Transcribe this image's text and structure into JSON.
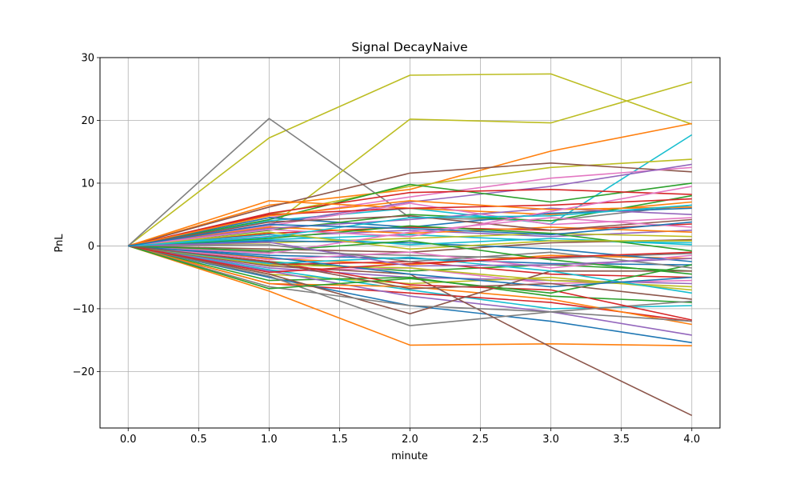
{
  "chart_data": {
    "type": "line",
    "title": "Signal DecayNaive",
    "xlabel": "minute",
    "ylabel": "PnL",
    "x": [
      0,
      1,
      2,
      3,
      4
    ],
    "xlim": [
      -0.2,
      4.2
    ],
    "ylim": [
      -29,
      30
    ],
    "xticks": [
      0.0,
      0.5,
      1.0,
      1.5,
      2.0,
      2.5,
      3.0,
      3.5,
      4.0
    ],
    "xtick_labels": [
      "0.0",
      "0.5",
      "1.0",
      "1.5",
      "2.0",
      "2.5",
      "3.0",
      "3.5",
      "4.0"
    ],
    "yticks": [
      -20,
      -10,
      0,
      10,
      20,
      30
    ],
    "ytick_labels": [
      "−20",
      "−10",
      "0",
      "10",
      "20",
      "30"
    ],
    "grid": true,
    "legend": "none",
    "palette": [
      "#1f77b4",
      "#ff7f0e",
      "#2ca02c",
      "#d62728",
      "#9467bd",
      "#8c564b",
      "#e377c2",
      "#7f7f7f",
      "#bcbd22",
      "#17becf"
    ],
    "series": [
      {
        "color": "#bcbd22",
        "values": [
          0,
          17.2,
          27.2,
          27.4,
          19.4
        ]
      },
      {
        "color": "#7f7f7f",
        "values": [
          0,
          20.3,
          4.5,
          4.0,
          6.5
        ]
      },
      {
        "color": "#bcbd22",
        "values": [
          0,
          3.0,
          20.2,
          19.6,
          26.1
        ]
      },
      {
        "color": "#ff7f0e",
        "values": [
          0,
          6.5,
          9.0,
          15.1,
          19.5
        ]
      },
      {
        "color": "#17becf",
        "values": [
          0,
          4.0,
          6.0,
          3.5,
          17.7
        ]
      },
      {
        "color": "#bcbd22",
        "values": [
          0,
          5.0,
          9.5,
          12.5,
          13.8
        ]
      },
      {
        "color": "#8c564b",
        "values": [
          0,
          6.2,
          11.6,
          13.2,
          11.8
        ]
      },
      {
        "color": "#e377c2",
        "values": [
          0,
          4.5,
          7.8,
          10.8,
          12.5
        ]
      },
      {
        "color": "#9467bd",
        "values": [
          0,
          3.5,
          7.0,
          9.5,
          13.0
        ]
      },
      {
        "color": "#2ca02c",
        "values": [
          0,
          4.2,
          9.8,
          7.0,
          10.0
        ]
      },
      {
        "color": "#d62728",
        "values": [
          0,
          5.2,
          8.5,
          9.0,
          8.2
        ]
      },
      {
        "color": "#ff7f0e",
        "values": [
          0,
          7.2,
          6.0,
          5.0,
          7.0
        ]
      },
      {
        "color": "#1f77b4",
        "values": [
          0,
          4.5,
          3.0,
          5.2,
          6.0
        ]
      },
      {
        "color": "#e377c2",
        "values": [
          0,
          3.2,
          6.8,
          3.4,
          4.5
        ]
      },
      {
        "color": "#2ca02c",
        "values": [
          0,
          2.5,
          5.0,
          4.0,
          8.0
        ]
      },
      {
        "color": "#d62728",
        "values": [
          0,
          2.0,
          3.0,
          2.5,
          3.5
        ]
      },
      {
        "color": "#9467bd",
        "values": [
          0,
          1.5,
          2.5,
          1.5,
          2.5
        ]
      },
      {
        "color": "#17becf",
        "values": [
          0,
          1.0,
          1.8,
          0.8,
          0.5
        ]
      },
      {
        "color": "#bcbd22",
        "values": [
          0,
          0.5,
          1.2,
          2.0,
          1.5
        ]
      },
      {
        "color": "#8c564b",
        "values": [
          0,
          -0.5,
          -1.0,
          0.5,
          1.0
        ]
      },
      {
        "color": "#7f7f7f",
        "values": [
          0,
          -1.0,
          -1.5,
          -2.0,
          -1.2
        ]
      },
      {
        "color": "#1f77b4",
        "values": [
          0,
          -1.5,
          -2.0,
          -2.8,
          -3.0
        ]
      },
      {
        "color": "#ff7f0e",
        "values": [
          0,
          -2.0,
          -3.0,
          -1.5,
          -2.0
        ]
      },
      {
        "color": "#2ca02c",
        "values": [
          0,
          -2.5,
          -4.0,
          -3.0,
          -4.0
        ]
      },
      {
        "color": "#d62728",
        "values": [
          0,
          -3.0,
          -2.5,
          -4.5,
          -5.0
        ]
      },
      {
        "color": "#9467bd",
        "values": [
          0,
          -3.5,
          -5.0,
          -5.5,
          -6.0
        ]
      },
      {
        "color": "#e377c2",
        "values": [
          0,
          -4.0,
          -3.5,
          -6.0,
          -5.5
        ]
      },
      {
        "color": "#bcbd22",
        "values": [
          0,
          -4.5,
          -6.0,
          -5.0,
          -7.0
        ]
      },
      {
        "color": "#17becf",
        "values": [
          0,
          -3.8,
          -7.0,
          -10.0,
          -9.5
        ]
      },
      {
        "color": "#2ca02c",
        "values": [
          0,
          -5.5,
          -5.0,
          -8.0,
          -9.0
        ]
      },
      {
        "color": "#d62728",
        "values": [
          0,
          -6.0,
          -7.5,
          -9.0,
          -12.0
        ]
      },
      {
        "color": "#1f77b4",
        "values": [
          0,
          -5.0,
          -9.5,
          -12.0,
          -15.4
        ]
      },
      {
        "color": "#9467bd",
        "values": [
          0,
          -4.0,
          -8.0,
          -10.5,
          -14.2
        ]
      },
      {
        "color": "#ff7f0e",
        "values": [
          0,
          -7.2,
          -15.8,
          -15.6,
          -15.9
        ]
      },
      {
        "color": "#ff7f0e",
        "values": [
          0,
          -6.0,
          -6.5,
          -8.5,
          -12.5
        ]
      },
      {
        "color": "#7f7f7f",
        "values": [
          0,
          -4.8,
          -12.7,
          -10.5,
          -8.8
        ]
      },
      {
        "color": "#8c564b",
        "values": [
          0,
          -4.5,
          -10.8,
          -4.0,
          -4.0
        ]
      },
      {
        "color": "#8c564b",
        "values": [
          0,
          -3.2,
          -4.5,
          -16.1,
          -27.0
        ]
      },
      {
        "color": "#7f7f7f",
        "values": [
          0,
          -6.5,
          -9.5,
          -10.5,
          -12.0
        ]
      },
      {
        "color": "#d62728",
        "values": [
          0,
          -2.5,
          -6.2,
          -7.0,
          -11.8
        ]
      },
      {
        "color": "#2ca02c",
        "values": [
          0,
          -6.8,
          -5.2,
          -7.5,
          -3.0
        ]
      },
      {
        "color": "#bcbd22",
        "values": [
          0,
          -3.0,
          -3.5,
          -5.5,
          -6.5
        ]
      },
      {
        "color": "#e377c2",
        "values": [
          0,
          -2.2,
          -1.0,
          -3.5,
          -1.5
        ]
      },
      {
        "color": "#1f77b4",
        "values": [
          0,
          0.8,
          0.5,
          -0.5,
          -2.5
        ]
      },
      {
        "color": "#17becf",
        "values": [
          0,
          1.8,
          0.2,
          1.2,
          0.2
        ]
      },
      {
        "color": "#ff7f0e",
        "values": [
          0,
          3.0,
          2.0,
          3.0,
          2.2
        ]
      },
      {
        "color": "#d62728",
        "values": [
          0,
          5.0,
          6.0,
          6.5,
          7.5
        ]
      },
      {
        "color": "#9467bd",
        "values": [
          0,
          2.8,
          4.2,
          6.0,
          5.0
        ]
      },
      {
        "color": "#8c564b",
        "values": [
          0,
          3.8,
          4.8,
          2.5,
          4.2
        ]
      },
      {
        "color": "#2ca02c",
        "values": [
          0,
          1.2,
          3.2,
          2.0,
          -0.8
        ]
      },
      {
        "color": "#e377c2",
        "values": [
          0,
          -1.2,
          2.2,
          4.5,
          3.0
        ]
      },
      {
        "color": "#7f7f7f",
        "values": [
          0,
          0.2,
          -2.5,
          -1.0,
          -3.5
        ]
      },
      {
        "color": "#17becf",
        "values": [
          0,
          -2.8,
          -1.8,
          -4.0,
          -7.5
        ]
      },
      {
        "color": "#1f77b4",
        "values": [
          0,
          -1.8,
          -4.5,
          -6.5,
          -5.0
        ]
      },
      {
        "color": "#bcbd22",
        "values": [
          0,
          2.2,
          -0.5,
          0.8,
          0.8
        ]
      },
      {
        "color": "#ff7f0e",
        "values": [
          0,
          4.8,
          7.2,
          5.8,
          6.2
        ]
      },
      {
        "color": "#2ca02c",
        "values": [
          0,
          -0.8,
          0.8,
          -2.2,
          -4.5
        ]
      },
      {
        "color": "#d62728",
        "values": [
          0,
          -4.2,
          -2.8,
          -1.8,
          -1.0
        ]
      },
      {
        "color": "#9467bd",
        "values": [
          0,
          0.6,
          -3.2,
          -3.0,
          -2.0
        ]
      },
      {
        "color": "#e377c2",
        "values": [
          0,
          2.6,
          1.5,
          5.5,
          9.5
        ]
      },
      {
        "color": "#8c564b",
        "values": [
          0,
          -2.6,
          -6.8,
          -6.0,
          -8.5
        ]
      },
      {
        "color": "#17becf",
        "values": [
          0,
          1.4,
          4.5,
          4.8,
          6.5
        ]
      },
      {
        "color": "#1f77b4",
        "values": [
          0,
          3.4,
          2.8,
          1.8,
          3.8
        ]
      }
    ]
  }
}
